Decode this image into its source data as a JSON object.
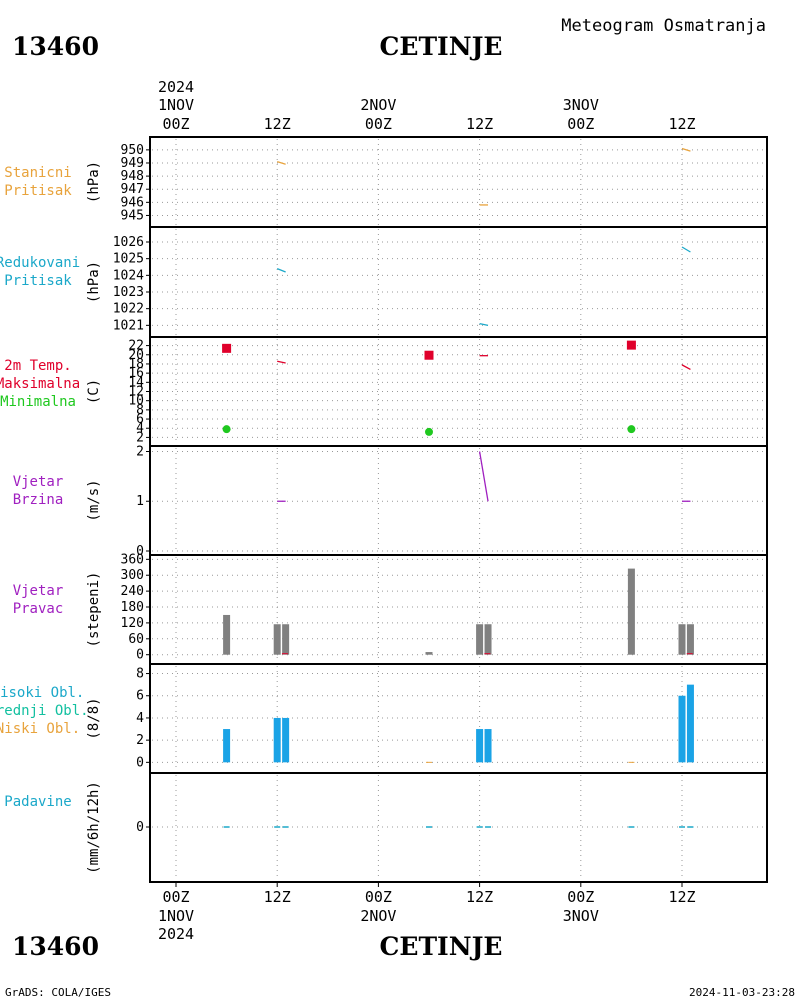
{
  "header": {
    "station_id": "13460",
    "station_name": "CETINJE",
    "product": "Meteogram Osmatranja"
  },
  "footer": {
    "station_id": "13460",
    "station_name": "CETINJE",
    "credit": "GrADS: COLA/IGES",
    "timestamp": "2024-11-03-23:28"
  },
  "time_axis": {
    "top": [
      {
        "hour": "00Z",
        "date": "1NOV",
        "year": "2024"
      },
      {
        "hour": "12Z",
        "date": "",
        "year": ""
      },
      {
        "hour": "00Z",
        "date": "2NOV",
        "year": ""
      },
      {
        "hour": "12Z",
        "date": "",
        "year": ""
      },
      {
        "hour": "00Z",
        "date": "3NOV",
        "year": ""
      },
      {
        "hour": "12Z",
        "date": "",
        "year": ""
      }
    ],
    "bottom": [
      {
        "hour": "00Z",
        "date": "1NOV",
        "year": "2024"
      },
      {
        "hour": "12Z",
        "date": "",
        "year": ""
      },
      {
        "hour": "00Z",
        "date": "2NOV",
        "year": ""
      },
      {
        "hour": "12Z",
        "date": "",
        "year": ""
      },
      {
        "hour": "00Z",
        "date": "3NOV",
        "year": ""
      },
      {
        "hour": "12Z",
        "date": "",
        "year": ""
      }
    ]
  },
  "colors": {
    "orange": "#e8a33c",
    "cyan": "#1ba8c9",
    "red": "#e0002b",
    "green": "#1fc81f",
    "purple": "#a020c0",
    "gray": "#808080",
    "blue_bar": "#1aa3e6",
    "teal": "#12c0a0"
  },
  "chart_data": [
    {
      "type": "line",
      "panel": "stanicni-pritisak",
      "labels": [
        "Stanicni",
        "Pritisak"
      ],
      "ylabel": "(hPa)",
      "yticks": [
        945,
        946,
        947,
        948,
        949,
        950
      ],
      "ylim": [
        944.5,
        950.6
      ],
      "series": [
        {
          "color": "orange",
          "x": [
            12.0,
            13.0
          ],
          "y": [
            949.1,
            948.9
          ]
        },
        {
          "color": "orange",
          "x": [
            36.0,
            37.0
          ],
          "y": [
            945.8,
            945.8
          ]
        },
        {
          "color": "orange",
          "x": [
            60.0,
            61.0
          ],
          "y": [
            950.1,
            949.9
          ]
        }
      ]
    },
    {
      "type": "line",
      "panel": "redukovani-pritisak",
      "labels": [
        "Redukovani",
        "Pritisak"
      ],
      "ylabel": "(hPa)",
      "yticks": [
        1021,
        1022,
        1023,
        1024,
        1025,
        1026
      ],
      "ylim": [
        1020.6,
        1026.6
      ],
      "series": [
        {
          "color": "cyan",
          "x": [
            12.0,
            13.0
          ],
          "y": [
            1024.4,
            1024.2
          ]
        },
        {
          "color": "cyan",
          "x": [
            36.0,
            37.0
          ],
          "y": [
            1021.1,
            1021.0
          ]
        },
        {
          "color": "cyan",
          "x": [
            60.0,
            61.0
          ],
          "y": [
            1025.7,
            1025.4
          ]
        }
      ]
    },
    {
      "type": "line",
      "panel": "temperatura-2m",
      "labels": [
        "2m Temp.",
        "Maksimalna",
        "Minimalna"
      ],
      "label_colors": [
        "red",
        "red",
        "green"
      ],
      "ylabel": "(C)",
      "yticks": [
        2,
        4,
        6,
        8,
        10,
        12,
        14,
        16,
        18,
        20,
        22
      ],
      "ylim": [
        1,
        23
      ],
      "series": [
        {
          "color": "red",
          "x": [
            12.0,
            13.0
          ],
          "y": [
            18.6,
            18.2
          ]
        },
        {
          "color": "red",
          "x": [
            36.0,
            37.0
          ],
          "y": [
            19.8,
            19.8
          ]
        },
        {
          "color": "red",
          "x": [
            60.0,
            61.0
          ],
          "y": [
            17.8,
            16.8
          ]
        }
      ],
      "max_points": {
        "color": "red",
        "x": [
          6.0,
          30.0,
          54.0
        ],
        "y": [
          21.4,
          19.9,
          22.1
        ]
      },
      "min_points": {
        "color": "green",
        "x": [
          6.0,
          30.0,
          54.0
        ],
        "y": [
          3.8,
          3.2,
          3.8
        ]
      }
    },
    {
      "type": "line",
      "panel": "vjetar-brzina",
      "labels": [
        "Vjetar",
        "Brzina"
      ],
      "ylabel": "(m/s)",
      "yticks": [
        0,
        1,
        2
      ],
      "ylim": [
        0,
        2.05
      ],
      "series": [
        {
          "color": "purple",
          "x": [
            12.0,
            13.0
          ],
          "y": [
            1.0,
            1.0
          ]
        },
        {
          "color": "purple",
          "x": [
            36.0,
            37.0
          ],
          "y": [
            2.0,
            1.0
          ]
        },
        {
          "color": "purple",
          "x": [
            60.0,
            61.0
          ],
          "y": [
            1.0,
            1.0
          ]
        }
      ]
    },
    {
      "type": "bar",
      "panel": "vjetar-pravac",
      "labels": [
        "Vjetar",
        "Pravac"
      ],
      "ylabel": "(stepeni)",
      "yticks": [
        0,
        60,
        120,
        180,
        240,
        300,
        360
      ],
      "ylim": [
        -20,
        365
      ],
      "bars": {
        "color": "gray",
        "x": [
          6.0,
          12.0,
          13.0,
          30.0,
          36.0,
          37.0,
          54.0,
          60.0,
          61.0
        ],
        "y": [
          150,
          115,
          115,
          10,
          115,
          115,
          325,
          115,
          115
        ]
      }
    },
    {
      "type": "bar",
      "panel": "oblaci",
      "labels": [
        "Visoki Obl.",
        "Srednji Obl.",
        "Niski Obl."
      ],
      "label_colors": [
        "cyan",
        "teal",
        "orange"
      ],
      "ylabel": "(8/8)",
      "yticks": [
        0,
        2,
        4,
        6,
        8
      ],
      "ylim": [
        -0.6,
        8.5
      ],
      "bars": {
        "color": "blue_bar",
        "x": [
          6.0,
          12.0,
          13.0,
          36.0,
          37.0,
          60.0,
          61.0
        ],
        "y": [
          3,
          4,
          4,
          3,
          3,
          6,
          7
        ]
      }
    },
    {
      "type": "bar",
      "panel": "padavine",
      "labels": [
        "Padavine"
      ],
      "ylabel": "(mm/6h/12h)",
      "yticks": [
        0
      ],
      "ylim": [
        -3,
        3
      ],
      "bars": {
        "color": "cyan",
        "x": [
          6.0,
          12.0,
          13.0,
          30.0,
          36.0,
          37.0,
          54.0,
          60.0,
          61.0
        ],
        "y": [
          0,
          0,
          0,
          0,
          0,
          0,
          0,
          0,
          0
        ]
      }
    }
  ]
}
